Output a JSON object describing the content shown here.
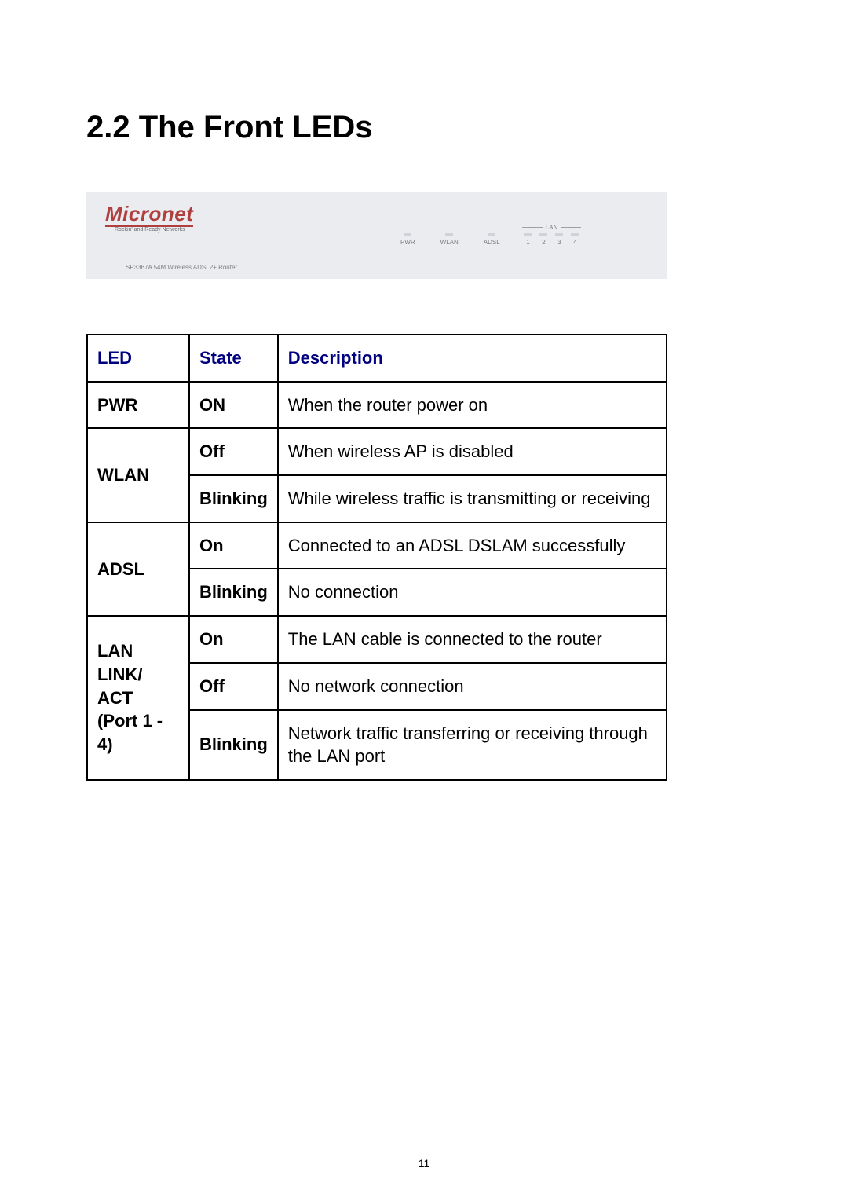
{
  "section_title": "2.2 The Front LEDs",
  "panel": {
    "brand": "Micronet",
    "tagline": "Rockin' and Ready Networks",
    "model": "SP3367A 54M Wireless ADSL2+ Router",
    "background_color": "#eaecef",
    "brand_color": "#b04040",
    "label_color": "#7b7b7b",
    "leds": {
      "pwr": "PWR",
      "wlan": "WLAN",
      "adsl": "ADSL",
      "lan_title": "LAN",
      "lan_ports": [
        "1",
        "2",
        "3",
        "4"
      ]
    }
  },
  "table": {
    "border_color": "#000000",
    "header_color": "#000080",
    "headers": {
      "led": "LED",
      "state": "State",
      "description": "Description"
    },
    "rows": {
      "pwr": {
        "led": "PWR",
        "state": "ON",
        "desc": "When the router power on"
      },
      "wlan": {
        "led": "WLAN",
        "r1": {
          "state": "Off",
          "desc": "When wireless AP is disabled"
        },
        "r2": {
          "state": "Blinking",
          "desc": "While wireless traffic is transmitting or receiving"
        }
      },
      "adsl": {
        "led": "ADSL",
        "r1": {
          "state": "On",
          "desc": "Connected to an ADSL DSLAM successfully"
        },
        "r2": {
          "state": "Blinking",
          "desc": "No connection"
        }
      },
      "lan": {
        "led_line1": "LAN",
        "led_line2": "LINK/ ACT",
        "led_line3": "(Port 1 - 4)",
        "r1": {
          "state": "On",
          "desc": "The LAN cable is connected to the router"
        },
        "r2": {
          "state": "Off",
          "desc": "No network connection"
        },
        "r3": {
          "state": "Blinking",
          "desc": "Network traffic transferring or receiving through the LAN port"
        }
      }
    }
  },
  "page_number": "11"
}
